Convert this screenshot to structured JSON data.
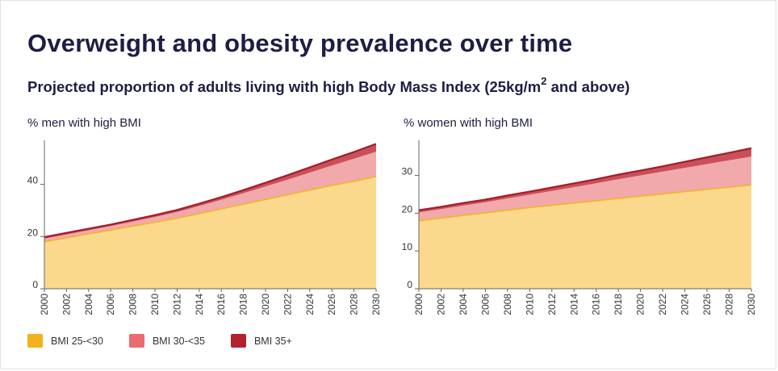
{
  "title": "Overweight and obesity prevalence over time",
  "subtitle": "Projected proportion of adults living with high Body Mass Index (25kg/m",
  "subtitle_sup": "2",
  "subtitle_end": " and above)",
  "colors": {
    "bmi_25_30": "#fbd98c",
    "bmi_25_30_line": "#f0b429",
    "bmi_30_35": "#f2a9ab",
    "bmi_35_plus": "#c9505a",
    "bmi_35_plus_line": "#a31d2a"
  },
  "legend": [
    {
      "label": "BMI 25-<30",
      "color": "#f2b21b"
    },
    {
      "label": "BMI 30-<35",
      "color": "#ec6b6e"
    },
    {
      "label": "BMI 35+",
      "color": "#b3202f"
    }
  ],
  "chart_data": [
    {
      "type": "area",
      "stacked": true,
      "title": "% men with high BMI",
      "x": [
        2000,
        2002,
        2004,
        2006,
        2008,
        2010,
        2012,
        2014,
        2016,
        2018,
        2020,
        2022,
        2024,
        2026,
        2028,
        2030
      ],
      "xticks": [
        "2000",
        "2002",
        "2004",
        "2006",
        "2008",
        "2010",
        "2012",
        "2014",
        "2016",
        "2018",
        "2020",
        "2022",
        "2024",
        "2026",
        "2028",
        "2030"
      ],
      "yticks": [
        0,
        20,
        40
      ],
      "ylim": [
        0,
        55
      ],
      "series": [
        {
          "name": "BMI 25-<30",
          "values": [
            18.0,
            19.5,
            21.0,
            22.5,
            24.0,
            25.5,
            27.0,
            28.8,
            30.6,
            32.4,
            34.2,
            36.0,
            37.8,
            39.6,
            41.2,
            43.0
          ]
        },
        {
          "name": "BMI 30-<35",
          "values": [
            1.2,
            1.3,
            1.4,
            1.5,
            1.7,
            2.0,
            2.4,
            2.9,
            3.5,
            4.2,
            5.0,
            5.8,
            6.7,
            7.6,
            8.6,
            9.5
          ]
        },
        {
          "name": "BMI 35+",
          "values": [
            0.6,
            0.6,
            0.6,
            0.6,
            0.7,
            0.7,
            0.8,
            0.9,
            1.0,
            1.2,
            1.4,
            1.7,
            2.0,
            2.3,
            2.6,
            3.0
          ]
        }
      ]
    },
    {
      "type": "area",
      "stacked": true,
      "title": "% women with high BMI",
      "x": [
        2000,
        2002,
        2004,
        2006,
        2008,
        2010,
        2012,
        2014,
        2016,
        2018,
        2020,
        2022,
        2024,
        2026,
        2028,
        2030
      ],
      "xticks": [
        "2000",
        "2002",
        "2004",
        "2006",
        "2008",
        "2010",
        "2012",
        "2014",
        "2016",
        "2018",
        "2020",
        "2022",
        "2024",
        "2026",
        "2028",
        "2030"
      ],
      "yticks": [
        0,
        10,
        20,
        30
      ],
      "ylim": [
        0,
        38
      ],
      "series": [
        {
          "name": "BMI 25-<30",
          "values": [
            18.0,
            18.7,
            19.4,
            20.1,
            20.8,
            21.5,
            22.1,
            22.7,
            23.3,
            23.9,
            24.5,
            25.1,
            25.7,
            26.3,
            26.9,
            27.5
          ]
        },
        {
          "name": "BMI 30-<35",
          "values": [
            2.2,
            2.4,
            2.6,
            2.8,
            3.1,
            3.4,
            3.8,
            4.2,
            4.6,
            5.1,
            5.5,
            5.9,
            6.3,
            6.7,
            7.1,
            7.5
          ]
        },
        {
          "name": "BMI 35+",
          "values": [
            0.6,
            0.6,
            0.7,
            0.7,
            0.8,
            0.8,
            0.9,
            1.0,
            1.1,
            1.2,
            1.3,
            1.4,
            1.6,
            1.8,
            2.0,
            2.2
          ]
        }
      ]
    }
  ]
}
